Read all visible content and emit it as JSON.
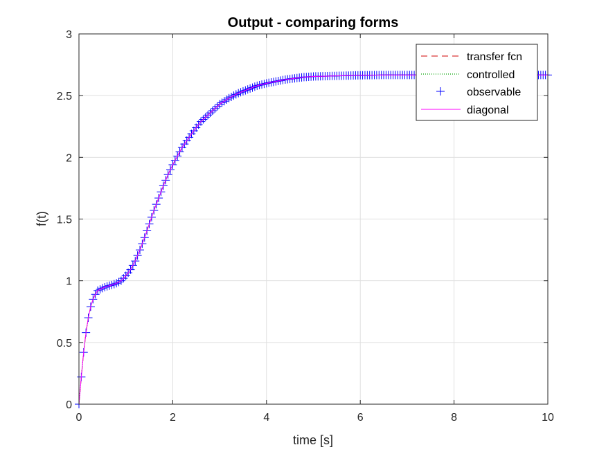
{
  "chart_data": {
    "type": "line",
    "title": "Output - comparing forms",
    "xlabel": "time [s]",
    "ylabel": "f(t)",
    "xlim": [
      0,
      10
    ],
    "ylim": [
      0,
      3
    ],
    "xticks": [
      0,
      2,
      4,
      6,
      8,
      10
    ],
    "yticks": [
      0,
      0.5,
      1,
      1.5,
      2,
      2.5,
      3
    ],
    "xtick_labels": [
      "0",
      "2",
      "4",
      "6",
      "8",
      "10"
    ],
    "ytick_labels": [
      "0",
      "0.5",
      "1",
      "1.5",
      "2",
      "2.5",
      "3"
    ],
    "grid": true,
    "legend_position": "top-right",
    "x": [
      0,
      0.05,
      0.1,
      0.15,
      0.2,
      0.25,
      0.3,
      0.35,
      0.4,
      0.5,
      0.6,
      0.7,
      0.8,
      0.9,
      1.0,
      1.1,
      1.2,
      1.3,
      1.4,
      1.5,
      1.6,
      1.7,
      1.8,
      1.9,
      2.0,
      2.2,
      2.4,
      2.6,
      2.8,
      3.0,
      3.2,
      3.4,
      3.6,
      3.8,
      4.0,
      4.2,
      4.4,
      4.6,
      4.8,
      5.0,
      5.5,
      6.0,
      6.5,
      7.0,
      7.5,
      8.0,
      8.5,
      9.0,
      9.5,
      10.0
    ],
    "series": [
      {
        "name": "transfer fcn",
        "color": "#d00000",
        "style": "dashed",
        "values": [
          0,
          0.22,
          0.42,
          0.58,
          0.7,
          0.79,
          0.85,
          0.89,
          0.92,
          0.94,
          0.955,
          0.965,
          0.98,
          1.0,
          1.04,
          1.09,
          1.16,
          1.25,
          1.35,
          1.46,
          1.57,
          1.67,
          1.77,
          1.86,
          1.94,
          2.08,
          2.19,
          2.29,
          2.36,
          2.43,
          2.48,
          2.52,
          2.55,
          2.58,
          2.6,
          2.615,
          2.63,
          2.64,
          2.65,
          2.655,
          2.66,
          2.665,
          2.667,
          2.667,
          2.667,
          2.667,
          2.667,
          2.667,
          2.667,
          2.667
        ]
      },
      {
        "name": "controlled",
        "color": "#00a000",
        "style": "dotted",
        "values": [
          0,
          0.22,
          0.42,
          0.58,
          0.7,
          0.79,
          0.85,
          0.89,
          0.92,
          0.94,
          0.955,
          0.965,
          0.98,
          1.0,
          1.04,
          1.09,
          1.16,
          1.25,
          1.35,
          1.46,
          1.57,
          1.67,
          1.77,
          1.86,
          1.94,
          2.08,
          2.19,
          2.29,
          2.36,
          2.43,
          2.48,
          2.52,
          2.55,
          2.58,
          2.6,
          2.615,
          2.63,
          2.64,
          2.65,
          2.655,
          2.66,
          2.665,
          2.667,
          2.667,
          2.667,
          2.667,
          2.667,
          2.667,
          2.667,
          2.667
        ]
      },
      {
        "name": "observable",
        "color": "#0000ff",
        "style": "plus-markers",
        "values": [
          0,
          0.22,
          0.42,
          0.58,
          0.7,
          0.79,
          0.85,
          0.89,
          0.92,
          0.94,
          0.955,
          0.965,
          0.98,
          1.0,
          1.04,
          1.09,
          1.16,
          1.25,
          1.35,
          1.46,
          1.57,
          1.67,
          1.77,
          1.86,
          1.94,
          2.08,
          2.19,
          2.29,
          2.36,
          2.43,
          2.48,
          2.52,
          2.55,
          2.58,
          2.6,
          2.615,
          2.63,
          2.64,
          2.65,
          2.655,
          2.66,
          2.665,
          2.667,
          2.667,
          2.667,
          2.667,
          2.667,
          2.667,
          2.667,
          2.667
        ]
      },
      {
        "name": "diagonal",
        "color": "#ff00ff",
        "style": "solid",
        "values": [
          0,
          0.22,
          0.42,
          0.58,
          0.7,
          0.79,
          0.85,
          0.89,
          0.92,
          0.94,
          0.955,
          0.965,
          0.98,
          1.0,
          1.04,
          1.09,
          1.16,
          1.25,
          1.35,
          1.46,
          1.57,
          1.67,
          1.77,
          1.86,
          1.94,
          2.08,
          2.19,
          2.29,
          2.36,
          2.43,
          2.48,
          2.52,
          2.55,
          2.58,
          2.6,
          2.615,
          2.63,
          2.64,
          2.65,
          2.655,
          2.66,
          2.665,
          2.667,
          2.667,
          2.667,
          2.667,
          2.667,
          2.667,
          2.667,
          2.667
        ]
      }
    ]
  }
}
